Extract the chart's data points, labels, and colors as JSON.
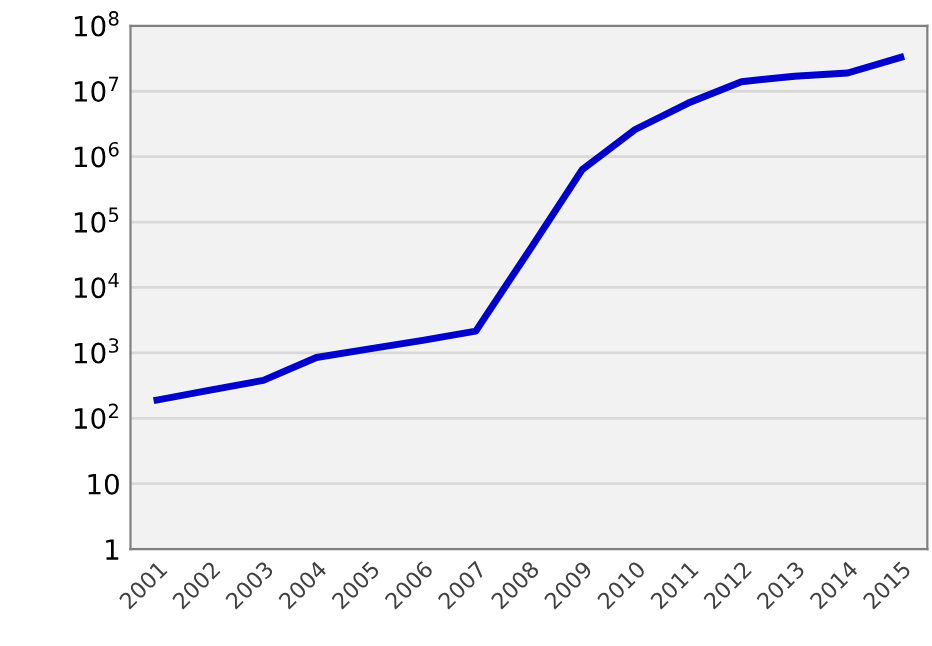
{
  "chart_data": {
    "type": "line",
    "log": true,
    "grid": "y",
    "marker": "none",
    "line_style": "solid",
    "categories": [
      "2001",
      "2002",
      "2003",
      "2004",
      "2005",
      "2006",
      "2007",
      "2008",
      "2009",
      "2010",
      "2011",
      "2012",
      "2013",
      "2014",
      "2015"
    ],
    "series": [
      {
        "color": "#0000cc",
        "values": [
          190,
          270,
          380,
          850,
          1150,
          1550,
          2150,
          36000,
          630000,
          2600000,
          6600000,
          14000000,
          17000000,
          19000000,
          33000000
        ]
      }
    ],
    "ylim": [
      1,
      100000000
    ],
    "yticks": [
      1,
      10,
      {
        "value": 100,
        "label": "10$^{2}$"
      },
      {
        "value": 1000,
        "label": "10$^{3}$"
      },
      {
        "value": 10000,
        "label": "10$^{4}$"
      },
      {
        "value": 100000,
        "label": "10$^{5}$"
      },
      {
        "value": 1000000,
        "label": "10$^{6}$"
      },
      {
        "value": 10000000,
        "label": "10$^{7}$"
      },
      {
        "value": 100000000,
        "label": "10$^{8}$"
      }
    ]
  }
}
